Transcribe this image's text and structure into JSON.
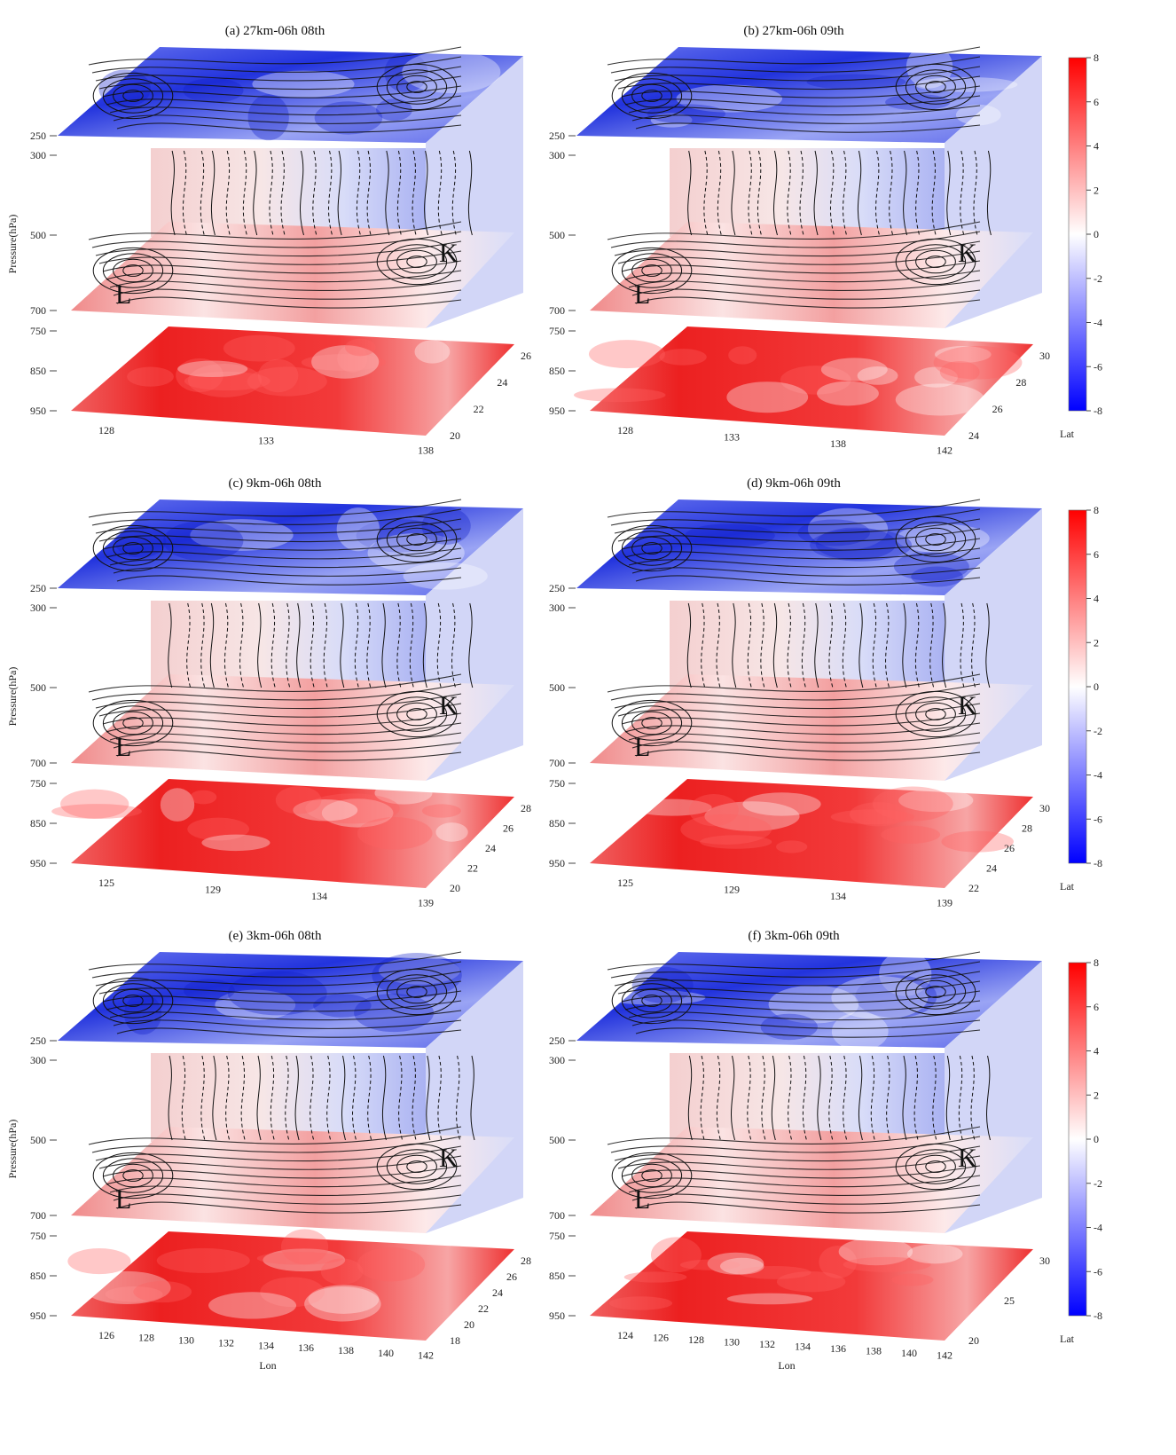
{
  "colors": {
    "positive": "#e31a1c",
    "neutral": "#ffffff",
    "negative": "#1f2bd8",
    "streamline": "#111111"
  },
  "chart_data": [
    {
      "type": "heatmap",
      "panel_title": "(a) 27km-06h 08th",
      "z_label": "Pressure(hPa)",
      "z_ticks": [
        "250",
        "300",
        "500",
        "700",
        "750",
        "850",
        "950"
      ],
      "x_ticks": [
        "128",
        "133",
        "138"
      ],
      "y_ticks": [
        "20",
        "22",
        "24",
        "26"
      ],
      "x_label": "",
      "y_label": "",
      "markers": [
        "L",
        "K"
      ],
      "colorbar": false
    },
    {
      "type": "heatmap",
      "panel_title": "(b) 27km-06h 09th",
      "z_label": "",
      "z_ticks": [
        "250",
        "300",
        "500",
        "700",
        "750",
        "850",
        "950"
      ],
      "x_ticks": [
        "128",
        "133",
        "138",
        "142"
      ],
      "y_ticks": [
        "24",
        "26",
        "28",
        "30"
      ],
      "x_label": "",
      "y_label": "Lat",
      "markers": [
        "L",
        "K"
      ],
      "colorbar": true,
      "colorbar_ticks": [
        "8",
        "6",
        "4",
        "2",
        "0",
        "-2",
        "-4",
        "-6",
        "-8"
      ],
      "colorbar_range": [
        -8,
        8
      ]
    },
    {
      "type": "heatmap",
      "panel_title": "(c) 9km-06h 08th",
      "z_label": "Pressure(hPa)",
      "z_ticks": [
        "250",
        "300",
        "500",
        "700",
        "750",
        "850",
        "950"
      ],
      "x_ticks": [
        "125",
        "129",
        "134",
        "139"
      ],
      "y_ticks": [
        "20",
        "22",
        "24",
        "26",
        "28"
      ],
      "x_label": "",
      "y_label": "",
      "markers": [
        "L",
        "K"
      ],
      "colorbar": false
    },
    {
      "type": "heatmap",
      "panel_title": "(d) 9km-06h 09th",
      "z_label": "",
      "z_ticks": [
        "250",
        "300",
        "500",
        "700",
        "750",
        "850",
        "950"
      ],
      "x_ticks": [
        "125",
        "129",
        "134",
        "139"
      ],
      "y_ticks": [
        "22",
        "24",
        "26",
        "28",
        "30"
      ],
      "x_label": "",
      "y_label": "Lat",
      "markers": [
        "L",
        "K"
      ],
      "colorbar": true,
      "colorbar_ticks": [
        "8",
        "6",
        "4",
        "2",
        "0",
        "-2",
        "-4",
        "-6",
        "-8"
      ],
      "colorbar_range": [
        -8,
        8
      ]
    },
    {
      "type": "heatmap",
      "panel_title": "(e) 3km-06h 08th",
      "z_label": "Pressure(hPa)",
      "z_ticks": [
        "250",
        "300",
        "500",
        "700",
        "750",
        "850",
        "950"
      ],
      "x_ticks": [
        "126",
        "128",
        "130",
        "132",
        "134",
        "136",
        "138",
        "140",
        "142"
      ],
      "y_ticks": [
        "18",
        "20",
        "22",
        "24",
        "26",
        "28"
      ],
      "x_label": "Lon",
      "y_label": "",
      "markers": [
        "L",
        "K"
      ],
      "colorbar": false
    },
    {
      "type": "heatmap",
      "panel_title": "(f) 3km-06h 09th",
      "z_label": "",
      "z_ticks": [
        "250",
        "300",
        "500",
        "700",
        "750",
        "850",
        "950"
      ],
      "x_ticks": [
        "124",
        "126",
        "128",
        "130",
        "132",
        "134",
        "136",
        "138",
        "140",
        "142"
      ],
      "y_ticks": [
        "20",
        "25",
        "30"
      ],
      "x_label": "Lon",
      "y_label": "Lat",
      "markers": [
        "L",
        "K"
      ],
      "colorbar": true,
      "colorbar_ticks": [
        "8",
        "6",
        "4",
        "2",
        "0",
        "-2",
        "-4",
        "-6",
        "-8"
      ],
      "colorbar_range": [
        -8,
        8
      ]
    }
  ]
}
